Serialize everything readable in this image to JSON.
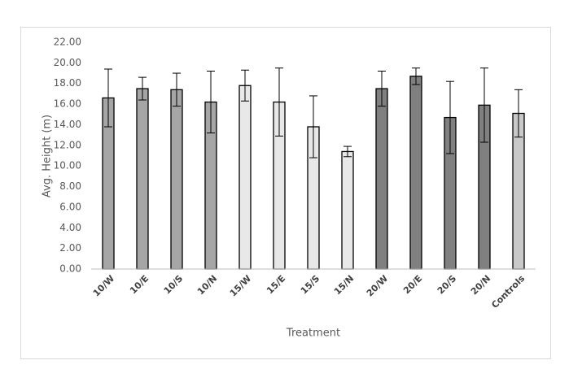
{
  "chart_data": {
    "type": "bar",
    "y_label": "Avg. Height (m)",
    "x_label": "Treatment",
    "categories": [
      "10/W",
      "10/E",
      "10/S",
      "10/N",
      "15/W",
      "15/E",
      "15/S",
      "15/N",
      "20/W",
      "20/E",
      "20/S",
      "20/N",
      "Controls"
    ],
    "values": [
      16.6,
      17.5,
      17.4,
      16.2,
      17.8,
      16.2,
      13.8,
      11.4,
      17.5,
      18.7,
      14.7,
      15.9,
      15.1
    ],
    "errors": [
      2.8,
      1.1,
      1.6,
      3.0,
      1.5,
      3.3,
      3.0,
      0.5,
      1.7,
      0.8,
      3.5,
      3.6,
      2.3
    ],
    "colors": [
      "#a6a6a6",
      "#a6a6a6",
      "#a6a6a6",
      "#a6a6a6",
      "#e8e8e8",
      "#e8e8e8",
      "#e8e8e8",
      "#e8e8e8",
      "#808080",
      "#808080",
      "#808080",
      "#808080",
      "#c9c9c9"
    ],
    "ylim": [
      0,
      22
    ],
    "yticks": [
      {
        "value": 0,
        "label": "0.00"
      },
      {
        "value": 2,
        "label": "2.00"
      },
      {
        "value": 4,
        "label": "4.00"
      },
      {
        "value": 6,
        "label": "6.00"
      },
      {
        "value": 8,
        "label": "8.00"
      },
      {
        "value": 10,
        "label": "10.00"
      },
      {
        "value": 12,
        "label": "12.00"
      },
      {
        "value": 14,
        "label": "14.00"
      },
      {
        "value": 16,
        "label": "16.00"
      },
      {
        "value": 18,
        "label": "18.00"
      },
      {
        "value": 20,
        "label": "20.00"
      },
      {
        "value": 22,
        "label": "22.00"
      }
    ],
    "grid": false
  }
}
